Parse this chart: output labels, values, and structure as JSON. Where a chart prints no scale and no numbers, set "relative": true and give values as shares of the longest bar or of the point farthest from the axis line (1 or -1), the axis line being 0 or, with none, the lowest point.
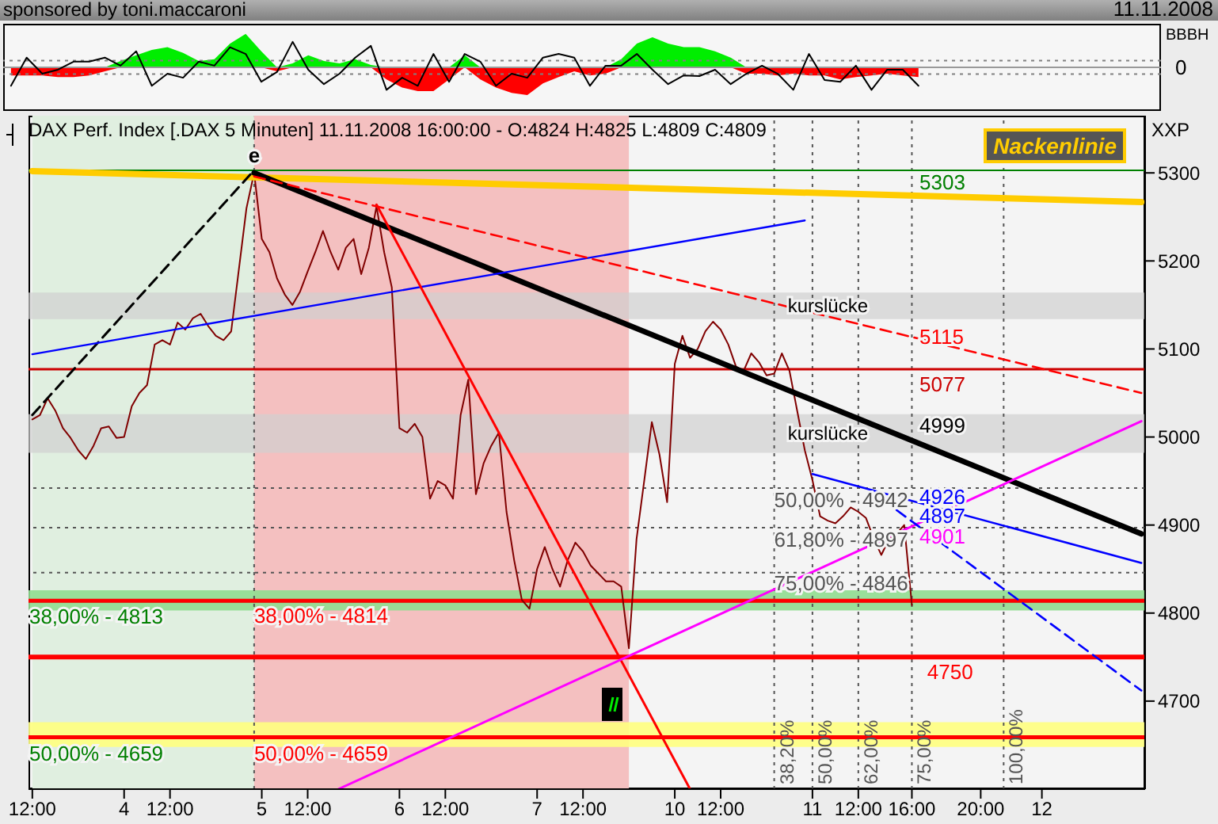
{
  "chart_data": [
    {
      "type": "line",
      "relative": true,
      "title": "sponsored by toni.maccaroni",
      "annotations": [
        "11.11.2008",
        "BBBH",
        "0"
      ],
      "categories": [
        null,
        null,
        null,
        null,
        null,
        null,
        null,
        null,
        null,
        null,
        null,
        null,
        null,
        null,
        null,
        null,
        null,
        null,
        null,
        null,
        null,
        null,
        null,
        null,
        null,
        null,
        null,
        null,
        null,
        null,
        null,
        null,
        null,
        null,
        null,
        null,
        null,
        null,
        null,
        null,
        null,
        null,
        null,
        null,
        null,
        null,
        null,
        null,
        null,
        null,
        null,
        null,
        null,
        null,
        null,
        null,
        null,
        null,
        null,
        null,
        null,
        null,
        null,
        null,
        null,
        null,
        null,
        null,
        null,
        null,
        null,
        null,
        null,
        null
      ],
      "ref_lines": [
        {
          "axis": "y",
          "value": 0.2,
          "color": "#808080",
          "line_style": "dotted"
        },
        {
          "axis": "y",
          "value": -0.2,
          "color": "#808080",
          "line_style": "dotted"
        }
      ],
      "series": [
        {
          "type": "area",
          "color": "#00ee00",
          "values": [
            0,
            0,
            0,
            0,
            0,
            0,
            0,
            0.19,
            0.36,
            0.52,
            0.6,
            0.43,
            0.19,
            0.24,
            0.71,
            1,
            0.48,
            0,
            0.12,
            0.36,
            0.19,
            0.12,
            0.24,
            0.07,
            0,
            0,
            0,
            0,
            0,
            0.36,
            0,
            0,
            0,
            0,
            0,
            0,
            0,
            0,
            0,
            0.24,
            0.71,
            0.9,
            0.71,
            0.6,
            0.6,
            0.48,
            0.29,
            0,
            0,
            0,
            0,
            0,
            0,
            0,
            0,
            0,
            0,
            0,
            0,
            null,
            null,
            null,
            null,
            null,
            null,
            null,
            null,
            null,
            null,
            null,
            null,
            null,
            null,
            null
          ]
        },
        {
          "type": "area",
          "color": "#ff0000",
          "values": [
            -0.24,
            -0.24,
            -0.24,
            -0.29,
            -0.29,
            -0.24,
            -0.12,
            0,
            0,
            0,
            0,
            0,
            0,
            0,
            0,
            0,
            0,
            -0.12,
            0,
            0,
            0,
            0,
            0,
            0,
            -0.36,
            -0.6,
            -0.71,
            -0.71,
            -0.36,
            0,
            -0.36,
            -0.6,
            -0.76,
            -0.83,
            -0.48,
            -0.29,
            -0.12,
            -0.24,
            -0.19,
            0,
            0,
            0,
            0,
            0,
            0,
            0,
            0,
            -0.19,
            -0.19,
            -0.24,
            -0.19,
            -0.24,
            -0.24,
            -0.36,
            -0.29,
            -0.24,
            -0.19,
            -0.24,
            -0.29,
            null,
            null,
            null,
            null,
            null,
            null,
            null,
            null,
            null,
            null,
            null,
            null,
            null,
            null,
            null
          ]
        },
        {
          "color": "#000000",
          "values": [
            -0.55,
            0.29,
            -0.19,
            -0.07,
            0.17,
            0.17,
            0.29,
            0.05,
            0.48,
            -0.55,
            -0.19,
            -0.31,
            0.17,
            0.05,
            0.6,
            0.4,
            -0.43,
            -0.14,
            0.76,
            -0.07,
            -0.5,
            -0.19,
            0.29,
            0.64,
            -0.67,
            -0.31,
            -0.55,
            0.4,
            -0.43,
            0.4,
            0.17,
            -0.55,
            -0.19,
            -0.31,
            0.29,
            0.4,
            0.29,
            -0.55,
            0.05,
            0.05,
            0.4,
            -0.07,
            -0.5,
            -0.24,
            -0.26,
            -0.07,
            -0.5,
            -0.19,
            0.05,
            -0.19,
            -0.67,
            0.4,
            -0.38,
            -0.43,
            0.05,
            -0.67,
            -0.07,
            -0.07,
            -0.55,
            null,
            null,
            null,
            null,
            null,
            null,
            null,
            null,
            null,
            null,
            null,
            null,
            null,
            null,
            null
          ]
        }
      ]
    },
    {
      "type": "line",
      "title": "DAX Perf. Index [.DAX 5 Minuten] 11.11.2008 16:00:00 - O:4824 H:4825 L:4809 C:4809",
      "ylabel": "XXP",
      "legend": "top right",
      "categories": [
        "12:00",
        null,
        null,
        null,
        null,
        null,
        null,
        null,
        null,
        null,
        null,
        null,
        "4",
        null,
        null,
        null,
        null,
        null,
        "12:00",
        null,
        null,
        null,
        null,
        null,
        null,
        null,
        null,
        null,
        null,
        null,
        "5",
        null,
        null,
        null,
        null,
        null,
        "12:00",
        null,
        null,
        null,
        null,
        null,
        null,
        null,
        null,
        null,
        null,
        null,
        "6",
        null,
        null,
        null,
        null,
        null,
        "12:00",
        null,
        null,
        null,
        null,
        null,
        null,
        null,
        null,
        null,
        null,
        null,
        "7",
        null,
        null,
        null,
        null,
        null,
        "12:00",
        null,
        null,
        null,
        null,
        null,
        null,
        null,
        null,
        null,
        null,
        null,
        "10",
        null,
        null,
        null,
        null,
        null,
        "12:00",
        null,
        null,
        null,
        null,
        null,
        null,
        null,
        null,
        null,
        null,
        null,
        "11",
        null,
        null,
        null,
        null,
        null,
        "12:00",
        null,
        null,
        null,
        null,
        null,
        null,
        "16:00",
        null,
        null,
        null,
        null,
        null,
        null,
        null,
        null,
        "20:00",
        null,
        null,
        null,
        null,
        null,
        null,
        null,
        "12",
        null,
        null,
        null,
        null,
        null,
        null,
        null,
        null,
        null,
        null,
        null,
        null,
        null
      ],
      "ylim": [
        4600,
        5365
      ],
      "yticks": [
        4700,
        4800,
        4900,
        5000,
        5100,
        5200,
        5300
      ],
      "bands": [
        {
          "axis": "y",
          "from": 4803,
          "to": 4826,
          "color": "#90dd90"
        },
        {
          "axis": "y",
          "from": 4648,
          "to": 4676,
          "color": "#ffff80"
        },
        {
          "axis": "y",
          "from": 5134,
          "to": 5164,
          "label": "kurslücke",
          "color": "#d0d0d0"
        },
        {
          "axis": "y",
          "from": 4982,
          "to": 5026,
          "label": "kurslücke",
          "color": "#d0d0d0"
        }
      ],
      "ref_lines": [
        {
          "axis": "y",
          "value": 5303,
          "label": "5303",
          "color": "#008000"
        },
        {
          "axis": "y",
          "value": 4813,
          "color": "#008000"
        },
        {
          "axis": "y",
          "value": 4814,
          "color": "#ff0000"
        },
        {
          "axis": "y",
          "value": 4659,
          "color": "#ff0000"
        },
        {
          "axis": "y",
          "value": 5077,
          "label": "5077",
          "color": "#cc0000"
        },
        {
          "axis": "y",
          "value": 4942,
          "color": "#555555",
          "line_style": "dotted"
        },
        {
          "axis": "y",
          "value": 4897,
          "color": "#555555",
          "line_style": "dotted"
        },
        {
          "axis": "y",
          "value": 4846,
          "color": "#555555",
          "line_style": "dotted"
        },
        {
          "axis": "y",
          "value": 4750,
          "label": "4750",
          "color": "#ff0000"
        }
      ],
      "annotations": [
        {
          "text": "e",
          "y": 5303
        },
        {
          "text": "5115",
          "y": 5115
        },
        "4999",
        {
          "text": "4926",
          "y": 4926
        },
        {
          "text": "4897",
          "y": 4897
        },
        {
          "text": "4901",
          "y": 4901
        },
        {
          "text": "38,00% - 4813",
          "y": 4813
        },
        {
          "text": "38,00% - 4814",
          "y": 4814
        },
        {
          "text": "50,00% - 4659",
          "y": 4659
        },
        {
          "text": "50,00% - 4659",
          "y": 4659
        },
        {
          "text": "50,00% - 4942",
          "y": 4942
        },
        {
          "text": "61,80% - 4897",
          "y": 4897
        },
        {
          "text": "75,00% - 4846",
          "y": 4846
        },
        "38,20%",
        "50,00%",
        "62,00%",
        "75,00%",
        "100,00%"
      ],
      "series": [
        {
          "color": "#800000",
          "values": [
            5020,
            5025,
            5044,
            5030,
            5010,
            4999,
            4985,
            4975,
            4990,
            5010,
            5012,
            4999,
            5000,
            5035,
            5050,
            5059,
            5105,
            5110,
            5105,
            5130,
            5122,
            5135,
            5140,
            5126,
            5115,
            5110,
            5120,
            5190,
            5260,
            5300,
            5225,
            5210,
            5180,
            5162,
            5150,
            5165,
            5188,
            5210,
            5234,
            5210,
            5190,
            5215,
            5225,
            5185,
            5215,
            5262,
            5210,
            5170,
            5010,
            5005,
            5015,
            5000,
            4930,
            4950,
            4945,
            4930,
            5025,
            5065,
            4935,
            4970,
            4990,
            5005,
            4915,
            4860,
            4815,
            4805,
            4850,
            4875,
            4850,
            4830,
            4860,
            4880,
            4870,
            4854,
            4845,
            4836,
            4836,
            4830,
            4760,
            4884,
            4950,
            5017,
            4980,
            4926,
            5083,
            5115,
            5090,
            5100,
            5120,
            5131,
            5122,
            5105,
            5080,
            5075,
            5095,
            5085,
            5070,
            5072,
            5095,
            5075,
            5030,
            4985,
            4951,
            4910,
            4905,
            4902,
            4910,
            4920,
            4915,
            4908,
            4885,
            4866,
            4884,
            4890,
            4900,
            4809,
            null,
            null,
            null,
            null,
            null,
            null,
            null,
            null,
            null,
            null,
            null,
            null,
            null,
            null,
            null,
            null,
            null,
            null,
            null,
            null,
            null,
            null,
            null,
            null,
            null,
            null,
            null,
            null,
            null,
            null
          ]
        },
        {
          "name": "Nackenlinie",
          "color": "#ffcc00",
          "values": [
            5302,
            null,
            null,
            null,
            null,
            null,
            null,
            null,
            null,
            null,
            null,
            null,
            null,
            null,
            null,
            null,
            null,
            null,
            null,
            null,
            null,
            null,
            null,
            null,
            null,
            null,
            null,
            null,
            null,
            null,
            null,
            null,
            null,
            null,
            null,
            null,
            null,
            null,
            null,
            null,
            null,
            null,
            null,
            null,
            null,
            null,
            null,
            null,
            null,
            null,
            null,
            null,
            null,
            null,
            null,
            null,
            null,
            null,
            null,
            null,
            null,
            null,
            null,
            null,
            null,
            null,
            null,
            null,
            null,
            null,
            null,
            null,
            null,
            null,
            null,
            null,
            null,
            null,
            null,
            null,
            null,
            null,
            null,
            null,
            null,
            null,
            null,
            null,
            null,
            null,
            null,
            null,
            null,
            null,
            null,
            null,
            null,
            null,
            null,
            null,
            null,
            null,
            null,
            null,
            null,
            null,
            null,
            null,
            null,
            null,
            null,
            null,
            null,
            null,
            null,
            null,
            null,
            null,
            null,
            null,
            null,
            null,
            null,
            null,
            null,
            null,
            null,
            null,
            null,
            null,
            null,
            null,
            null,
            null,
            null,
            null,
            null,
            null,
            null,
            null,
            null,
            null,
            null,
            null,
            null,
            5267
          ]
        },
        {
          "color": "#000000",
          "line_style": "dashed",
          "values": [
            5025,
            null,
            null,
            null,
            null,
            null,
            null,
            null,
            null,
            null,
            null,
            null,
            null,
            null,
            null,
            null,
            null,
            null,
            null,
            null,
            null,
            null,
            null,
            null,
            null,
            null,
            null,
            null,
            null,
            5303,
            null,
            null,
            null,
            null,
            null,
            null,
            null,
            null,
            null,
            null,
            null,
            null,
            null,
            null,
            null,
            null,
            null,
            null,
            null,
            null,
            null,
            null,
            null,
            null,
            null,
            null,
            null,
            null,
            null,
            null,
            null,
            null,
            null,
            null,
            null,
            null,
            null,
            null,
            null,
            null,
            null,
            null,
            null,
            null,
            null,
            null,
            null,
            null,
            null,
            null,
            null,
            null,
            null,
            null,
            null,
            null,
            null,
            null,
            null,
            null,
            null,
            null,
            null,
            null,
            null,
            null,
            null,
            null,
            null,
            null,
            null,
            null,
            null,
            null,
            null,
            null,
            null,
            null,
            null,
            null,
            null,
            null,
            null,
            null,
            null,
            null,
            null,
            null,
            null,
            null,
            null,
            null,
            null,
            null,
            null,
            null,
            null,
            null,
            null,
            null,
            null,
            null,
            null,
            null,
            null,
            null,
            null,
            null,
            null,
            null,
            null,
            null,
            null,
            null,
            null,
            null
          ]
        },
        {
          "color": "#000000",
          "values": [
            null,
            null,
            null,
            null,
            null,
            null,
            null,
            null,
            null,
            null,
            null,
            null,
            null,
            null,
            null,
            null,
            null,
            null,
            null,
            null,
            null,
            null,
            null,
            null,
            null,
            null,
            null,
            null,
            null,
            5300,
            null,
            null,
            null,
            null,
            null,
            null,
            null,
            null,
            null,
            null,
            null,
            null,
            null,
            null,
            null,
            null,
            null,
            null,
            null,
            null,
            null,
            null,
            null,
            null,
            null,
            null,
            null,
            null,
            null,
            null,
            null,
            null,
            null,
            null,
            null,
            null,
            null,
            null,
            null,
            null,
            null,
            null,
            null,
            null,
            null,
            null,
            null,
            null,
            null,
            null,
            null,
            null,
            null,
            null,
            null,
            null,
            null,
            null,
            null,
            null,
            null,
            null,
            null,
            null,
            null,
            null,
            null,
            null,
            null,
            null,
            null,
            null,
            null,
            null,
            null,
            null,
            null,
            null,
            null,
            null,
            null,
            null,
            null,
            null,
            null,
            null,
            null,
            null,
            null,
            null,
            null,
            null,
            null,
            null,
            null,
            null,
            null,
            null,
            null,
            null,
            null,
            null,
            null,
            null,
            null,
            null,
            null,
            null,
            null,
            null,
            null,
            null,
            null,
            null,
            null,
            4890
          ]
        },
        {
          "color": "#0000ff",
          "values": [
            5094,
            null,
            null,
            null,
            null,
            null,
            null,
            null,
            null,
            null,
            null,
            null,
            null,
            null,
            null,
            null,
            null,
            null,
            null,
            null,
            null,
            null,
            null,
            null,
            null,
            null,
            null,
            null,
            null,
            null,
            null,
            null,
            null,
            null,
            null,
            null,
            null,
            null,
            null,
            null,
            null,
            null,
            null,
            null,
            null,
            null,
            null,
            null,
            null,
            null,
            null,
            null,
            null,
            null,
            null,
            null,
            null,
            null,
            null,
            null,
            null,
            null,
            null,
            null,
            null,
            null,
            null,
            null,
            null,
            null,
            null,
            null,
            null,
            null,
            null,
            null,
            null,
            null,
            null,
            null,
            null,
            null,
            null,
            null,
            null,
            null,
            null,
            null,
            null,
            null,
            null,
            null,
            null,
            null,
            null,
            null,
            null,
            null,
            null,
            null,
            null,
            5246,
            null,
            null,
            null,
            null,
            null,
            null,
            null,
            null,
            null,
            null,
            null,
            null,
            null,
            null,
            null,
            null,
            null,
            null,
            null,
            null,
            null,
            null,
            null,
            null,
            null,
            null,
            null,
            null,
            null,
            null,
            null,
            null,
            null,
            null,
            null,
            null,
            null,
            null,
            null,
            null,
            null,
            null,
            null,
            null
          ]
        },
        {
          "color": "#ff0000",
          "line_style": "dashed",
          "values": [
            null,
            null,
            null,
            null,
            null,
            null,
            null,
            null,
            null,
            null,
            null,
            null,
            null,
            null,
            null,
            null,
            null,
            null,
            null,
            null,
            null,
            null,
            null,
            null,
            null,
            null,
            null,
            null,
            null,
            5296,
            null,
            null,
            null,
            null,
            null,
            null,
            null,
            null,
            null,
            null,
            null,
            null,
            null,
            null,
            null,
            null,
            null,
            null,
            null,
            null,
            null,
            null,
            null,
            null,
            null,
            null,
            null,
            null,
            null,
            null,
            null,
            null,
            null,
            null,
            null,
            null,
            null,
            null,
            null,
            null,
            null,
            null,
            null,
            null,
            null,
            null,
            null,
            null,
            null,
            null,
            null,
            null,
            null,
            null,
            null,
            null,
            null,
            null,
            null,
            null,
            null,
            null,
            null,
            null,
            null,
            null,
            null,
            null,
            null,
            null,
            null,
            null,
            null,
            null,
            null,
            null,
            null,
            null,
            null,
            null,
            null,
            null,
            null,
            null,
            null,
            null,
            null,
            null,
            null,
            null,
            null,
            null,
            null,
            null,
            null,
            null,
            null,
            null,
            null,
            null,
            null,
            null,
            null,
            null,
            null,
            null,
            null,
            null,
            null,
            null,
            null,
            null,
            null,
            null,
            null,
            5050
          ]
        },
        {
          "color": "#ff0000",
          "values": [
            null,
            null,
            null,
            null,
            null,
            null,
            null,
            null,
            null,
            null,
            null,
            null,
            null,
            null,
            null,
            null,
            null,
            null,
            null,
            null,
            null,
            null,
            null,
            null,
            null,
            null,
            null,
            null,
            null,
            null,
            null,
            null,
            null,
            null,
            null,
            null,
            null,
            null,
            null,
            null,
            null,
            null,
            null,
            null,
            null,
            5264,
            null,
            null,
            null,
            null,
            null,
            null,
            null,
            null,
            null,
            null,
            null,
            null,
            null,
            null,
            null,
            null,
            null,
            null,
            null,
            null,
            null,
            null,
            null,
            null,
            null,
            null,
            null,
            null,
            null,
            null,
            null,
            null,
            null,
            null,
            null,
            null,
            null,
            null,
            null,
            null,
            4600,
            null,
            null,
            null,
            null,
            null,
            null,
            null,
            null,
            null,
            null,
            null,
            null,
            null,
            null,
            null,
            null,
            null,
            null,
            null,
            null,
            null,
            null,
            null,
            null,
            null,
            null,
            null,
            null,
            null,
            null,
            null,
            null,
            null,
            null,
            null,
            null,
            null,
            null,
            null,
            null,
            null,
            null,
            null,
            null,
            null,
            null,
            null,
            null,
            null,
            null,
            null,
            null,
            null,
            null,
            null,
            null,
            null,
            null,
            null
          ]
        },
        {
          "color": "#ff00ff",
          "values": [
            null,
            null,
            null,
            null,
            null,
            null,
            null,
            null,
            null,
            null,
            null,
            null,
            null,
            null,
            null,
            null,
            null,
            null,
            null,
            null,
            null,
            null,
            null,
            null,
            null,
            null,
            null,
            null,
            null,
            null,
            null,
            null,
            null,
            null,
            null,
            null,
            null,
            null,
            null,
            null,
            4600,
            null,
            null,
            null,
            null,
            null,
            null,
            null,
            null,
            null,
            null,
            null,
            null,
            null,
            null,
            null,
            null,
            null,
            null,
            null,
            null,
            null,
            null,
            null,
            null,
            null,
            null,
            null,
            null,
            null,
            null,
            null,
            null,
            null,
            null,
            null,
            null,
            null,
            null,
            null,
            null,
            null,
            null,
            null,
            null,
            null,
            null,
            null,
            null,
            null,
            null,
            null,
            null,
            null,
            null,
            null,
            null,
            null,
            null,
            null,
            null,
            null,
            null,
            null,
            null,
            null,
            null,
            null,
            null,
            null,
            null,
            null,
            null,
            null,
            null,
            null,
            null,
            null,
            null,
            null,
            null,
            null,
            null,
            null,
            null,
            null,
            null,
            null,
            null,
            null,
            null,
            null,
            null,
            null,
            null,
            null,
            null,
            null,
            null,
            null,
            null,
            null,
            null,
            null,
            null,
            5018
          ]
        },
        {
          "color": "#0000ff",
          "values": [
            null,
            null,
            null,
            null,
            null,
            null,
            null,
            null,
            null,
            null,
            null,
            null,
            null,
            null,
            null,
            null,
            null,
            null,
            null,
            null,
            null,
            null,
            null,
            null,
            null,
            null,
            null,
            null,
            null,
            null,
            null,
            null,
            null,
            null,
            null,
            null,
            null,
            null,
            null,
            null,
            null,
            null,
            null,
            null,
            null,
            null,
            null,
            null,
            null,
            null,
            null,
            null,
            null,
            null,
            null,
            null,
            null,
            null,
            null,
            null,
            null,
            null,
            null,
            null,
            null,
            null,
            null,
            null,
            null,
            null,
            null,
            null,
            null,
            null,
            null,
            null,
            null,
            null,
            null,
            null,
            null,
            null,
            null,
            null,
            null,
            null,
            null,
            null,
            null,
            null,
            null,
            null,
            null,
            null,
            null,
            null,
            null,
            null,
            null,
            null,
            null,
            null,
            4958,
            null,
            null,
            null,
            null,
            null,
            null,
            null,
            null,
            null,
            null,
            null,
            null,
            null,
            null,
            null,
            null,
            null,
            null,
            null,
            null,
            null,
            null,
            null,
            null,
            null,
            null,
            null,
            null,
            null,
            null,
            null,
            null,
            null,
            null,
            null,
            null,
            null,
            null,
            null,
            null,
            null,
            null,
            4857
          ]
        },
        {
          "color": "#0000ff",
          "line_style": "dashed",
          "values": [
            null,
            null,
            null,
            null,
            null,
            null,
            null,
            null,
            null,
            null,
            null,
            null,
            null,
            null,
            null,
            null,
            null,
            null,
            null,
            null,
            null,
            null,
            null,
            null,
            null,
            null,
            null,
            null,
            null,
            null,
            null,
            null,
            null,
            null,
            null,
            null,
            null,
            null,
            null,
            null,
            null,
            null,
            null,
            null,
            null,
            null,
            null,
            null,
            null,
            null,
            null,
            null,
            null,
            null,
            null,
            null,
            null,
            null,
            null,
            null,
            null,
            null,
            null,
            null,
            null,
            null,
            null,
            null,
            null,
            null,
            null,
            null,
            null,
            null,
            null,
            null,
            null,
            null,
            null,
            null,
            null,
            null,
            null,
            null,
            null,
            null,
            null,
            null,
            null,
            null,
            null,
            null,
            null,
            null,
            null,
            null,
            null,
            null,
            null,
            null,
            null,
            null,
            null,
            null,
            null,
            null,
            null,
            null,
            null,
            null,
            null,
            null,
            null,
            4917,
            null,
            null,
            null,
            null,
            null,
            null,
            null,
            null,
            null,
            null,
            null,
            null,
            null,
            null,
            null,
            null,
            null,
            null,
            null,
            null,
            null,
            null,
            null,
            null,
            null,
            null,
            null,
            null,
            null,
            null,
            null,
            4712
          ]
        }
      ]
    }
  ]
}
